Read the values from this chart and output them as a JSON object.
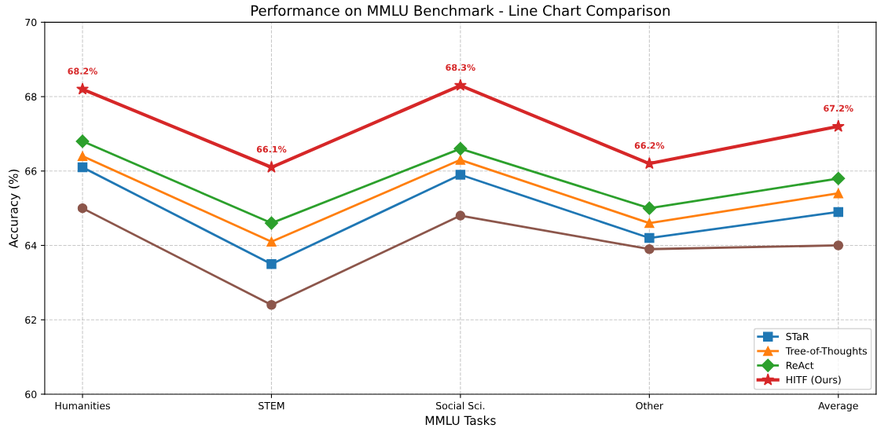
{
  "chart_data": {
    "type": "line",
    "title": "Performance on MMLU Benchmark - Line Chart Comparison",
    "xlabel": "MMLU Tasks",
    "ylabel": "Accuracy (%)",
    "categories": [
      "Humanities",
      "STEM",
      "Social Sci.",
      "Other",
      "Average"
    ],
    "series": [
      {
        "color": "#8c564b",
        "marker": "circle",
        "values": [
          65.0,
          62.4,
          64.8,
          63.9,
          64.0
        ]
      },
      {
        "name": "STaR",
        "color": "#1f77b4",
        "marker": "square",
        "values": [
          66.1,
          63.5,
          65.9,
          64.2,
          64.9
        ]
      },
      {
        "name": "Tree-of-Thoughts",
        "color": "#ff7f0e",
        "marker": "triangle",
        "values": [
          66.4,
          64.1,
          66.3,
          64.6,
          65.4
        ]
      },
      {
        "name": "ReAct",
        "color": "#2ca02c",
        "marker": "diamond",
        "values": [
          66.8,
          64.6,
          66.6,
          65.0,
          65.8
        ]
      },
      {
        "name": "HITF (Ours)",
        "color": "#d62728",
        "marker": "star",
        "values": [
          68.2,
          66.1,
          68.3,
          66.2,
          67.2
        ],
        "value_labels": [
          "68.2%",
          "66.1%",
          "68.3%",
          "66.2%",
          "67.2%"
        ]
      }
    ],
    "ylim": [
      60,
      70
    ],
    "yticks": [
      60,
      62,
      64,
      66,
      68,
      70
    ],
    "grid": true,
    "legend": "bottom right",
    "line_style": "solid"
  }
}
